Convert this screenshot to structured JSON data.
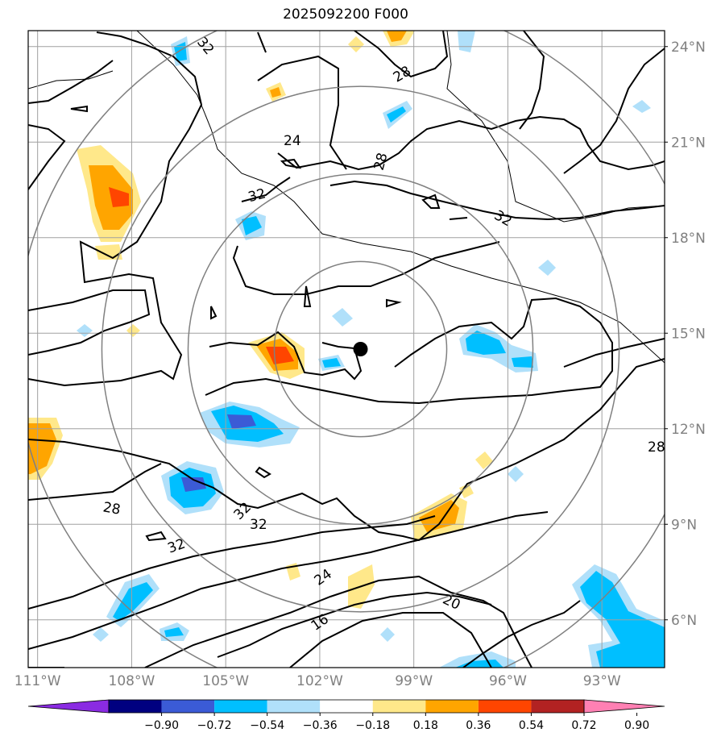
{
  "title": "2025092200 F000",
  "map": {
    "lon_range": [
      -111.3,
      -91.0
    ],
    "lat_range": [
      4.5,
      24.5
    ],
    "center": {
      "lon": -100.7,
      "lat": 14.5
    },
    "range_rings_deg": [
      2.5,
      5,
      7.5,
      10
    ]
  },
  "lat_ticks": [
    {
      "lat": 24,
      "label": "24°N"
    },
    {
      "lat": 21,
      "label": "21°N"
    },
    {
      "lat": 18,
      "label": "18°N"
    },
    {
      "lat": 15,
      "label": "15°N"
    },
    {
      "lat": 12,
      "label": "12°N"
    },
    {
      "lat": 9,
      "label": "9°N"
    },
    {
      "lat": 6,
      "label": "6°N"
    }
  ],
  "lon_ticks": [
    {
      "lon": -111,
      "label": "111°W"
    },
    {
      "lon": -108,
      "label": "108°W"
    },
    {
      "lon": -105,
      "label": "105°W"
    },
    {
      "lon": -102,
      "label": "102°W"
    },
    {
      "lon": -99,
      "label": "99°W"
    },
    {
      "lon": -96,
      "label": "96°W"
    },
    {
      "lon": -93,
      "label": "93°W"
    }
  ],
  "contour_labels": [
    {
      "text": "32"
    },
    {
      "text": "28"
    },
    {
      "text": "24"
    },
    {
      "text": "28"
    },
    {
      "text": "32"
    },
    {
      "text": "32"
    },
    {
      "text": "28"
    },
    {
      "text": "32"
    },
    {
      "text": "32"
    },
    {
      "text": "32"
    },
    {
      "text": "24"
    },
    {
      "text": "20"
    },
    {
      "text": "16"
    },
    {
      "text": "28"
    }
  ],
  "colorbar": {
    "colors": [
      "#8a2be2",
      "#000080",
      "#3b5bd6",
      "#00bfff",
      "#b0e0fa",
      "#ffffff",
      "#ffe88a",
      "#ffa500",
      "#ff4500",
      "#b22222",
      "#ff80b3"
    ],
    "tick_labels": [
      "−0.90",
      "−0.72",
      "−0.54",
      "−0.36",
      "−0.18",
      "0.18",
      "0.36",
      "0.54",
      "0.72",
      "0.90"
    ]
  },
  "colors": {
    "grid": "#a0a0a0",
    "ring": "#808080",
    "tick_text": "#808080"
  }
}
